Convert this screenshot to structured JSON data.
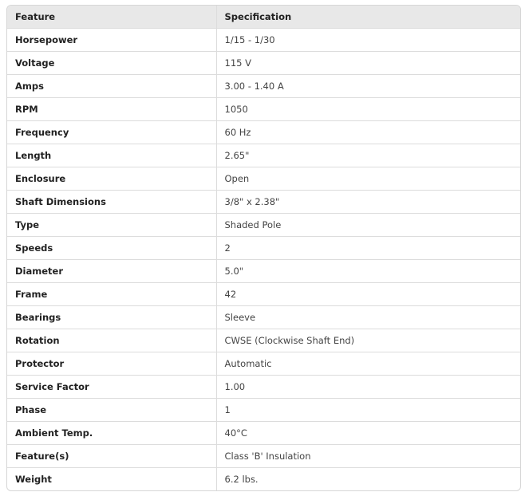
{
  "table": {
    "headers": [
      "Feature",
      "Specification"
    ],
    "rows": [
      [
        "Horsepower",
        "1/15 - 1/30"
      ],
      [
        "Voltage",
        "115 V"
      ],
      [
        "Amps",
        "3.00 - 1.40 A"
      ],
      [
        "RPM",
        "1050"
      ],
      [
        "Frequency",
        "60 Hz"
      ],
      [
        "Length",
        "2.65\""
      ],
      [
        "Enclosure",
        "Open"
      ],
      [
        "Shaft Dimensions",
        "3/8\" x 2.38\""
      ],
      [
        "Type",
        "Shaded Pole"
      ],
      [
        "Speeds",
        "2"
      ],
      [
        "Diameter",
        "5.0\""
      ],
      [
        "Frame",
        "42"
      ],
      [
        "Bearings",
        "Sleeve"
      ],
      [
        "Rotation",
        "CWSE (Clockwise Shaft End)"
      ],
      [
        "Protector",
        "Automatic"
      ],
      [
        "Service Factor",
        "1.00"
      ],
      [
        "Phase",
        "1"
      ],
      [
        "Ambient Temp.",
        "40°C"
      ],
      [
        "Feature(s)",
        "Class 'B' Insulation"
      ],
      [
        "Weight",
        "6.2 lbs."
      ]
    ]
  }
}
